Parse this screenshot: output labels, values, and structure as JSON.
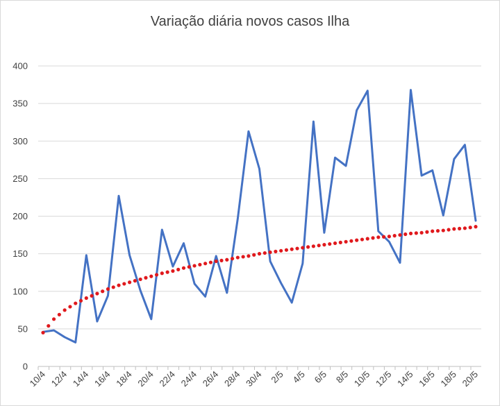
{
  "chart_data": {
    "type": "line",
    "title": "Variação diária novos casos Ilha",
    "xlabel": "",
    "ylabel": "",
    "ylim": [
      0,
      400
    ],
    "yticks": [
      0,
      50,
      100,
      150,
      200,
      250,
      300,
      350,
      400
    ],
    "grid": true,
    "categories": [
      "10/4",
      "11/4",
      "12/4",
      "13/4",
      "14/4",
      "15/4",
      "16/4",
      "17/4",
      "18/4",
      "19/4",
      "20/4",
      "21/4",
      "22/4",
      "23/4",
      "24/4",
      "25/4",
      "26/4",
      "27/4",
      "28/4",
      "29/4",
      "30/4",
      "1/5",
      "2/5",
      "3/5",
      "4/5",
      "5/5",
      "6/5",
      "7/5",
      "8/5",
      "9/5",
      "10/5",
      "11/5",
      "12/5",
      "13/5",
      "14/5",
      "15/5",
      "16/5",
      "17/5",
      "18/5",
      "19/5",
      "20/5"
    ],
    "tick_labels": [
      "10/4",
      "12/4",
      "14/4",
      "16/4",
      "18/4",
      "20/4",
      "22/4",
      "24/4",
      "26/4",
      "28/4",
      "30/4",
      "2/5",
      "4/5",
      "6/5",
      "8/5",
      "10/5",
      "12/5",
      "14/5",
      "16/5",
      "18/5",
      "20/5"
    ],
    "series": [
      {
        "name": "",
        "color": "#4472c4",
        "style": "solid",
        "values": [
          46,
          48,
          39,
          32,
          148,
          60,
          94,
          227,
          148,
          101,
          63,
          182,
          133,
          164,
          110,
          93,
          147,
          98,
          197,
          313,
          263,
          140,
          111,
          85,
          137,
          326,
          178,
          278,
          267,
          341,
          367,
          180,
          166,
          138,
          368,
          254,
          261,
          201,
          276,
          295,
          194
        ]
      },
      {
        "name": "",
        "color": "#e0191d",
        "style": "dotted",
        "type": "trendline-log",
        "values": [
          45,
          63,
          75,
          84,
          91,
          97,
          103,
          108,
          112,
          116,
          120,
          124,
          127,
          131,
          134,
          137,
          140,
          142,
          145,
          147,
          150,
          152,
          154,
          156,
          158,
          160,
          162,
          164,
          166,
          168,
          170,
          172,
          173,
          175,
          177,
          178,
          180,
          181,
          183,
          184,
          186
        ]
      }
    ]
  }
}
